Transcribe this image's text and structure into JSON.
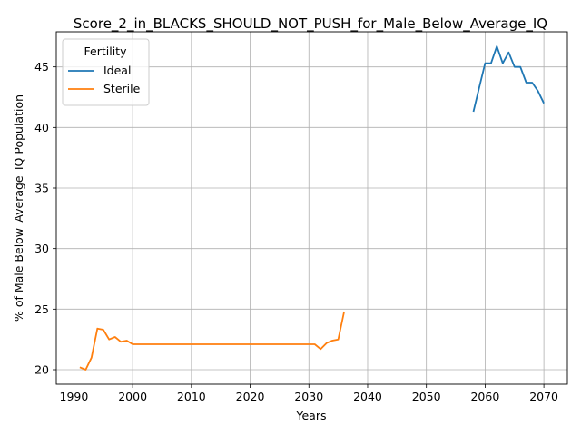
{
  "chart_data": {
    "type": "line",
    "title": "Score_2_in_BLACKS_SHOULD_NOT_PUSH_for_Male_Below_Average_IQ",
    "xlabel": "Years",
    "ylabel": "% of Male Below_Average_IQ Population",
    "xlim": [
      1987,
      2074
    ],
    "ylim": [
      18.8,
      47.9
    ],
    "xticks": [
      1990,
      2000,
      2010,
      2020,
      2030,
      2040,
      2050,
      2060,
      2070
    ],
    "yticks": [
      20,
      25,
      30,
      35,
      40,
      45
    ],
    "grid": true,
    "legend": {
      "title": "Fertility",
      "placement": "top-left"
    },
    "series": [
      {
        "name": "Ideal",
        "color": "#1f77b4",
        "x": [
          2058,
          2059,
          2060,
          2061,
          2062,
          2063,
          2064,
          2065,
          2066,
          2067,
          2068,
          2069,
          2070
        ],
        "y": [
          41.3,
          43.3,
          45.3,
          45.3,
          46.7,
          45.3,
          46.2,
          45.0,
          45.0,
          43.7,
          43.7,
          43.0,
          42.0
        ]
      },
      {
        "name": "Sterile",
        "color": "#ff7f0e",
        "x": [
          1991,
          1992,
          1993,
          1994,
          1995,
          1996,
          1997,
          1998,
          1999,
          2000,
          2001,
          2005,
          2010,
          2015,
          2020,
          2025,
          2030,
          2031,
          2032,
          2033,
          2034,
          2035,
          2036
        ],
        "y": [
          20.2,
          20.0,
          21.0,
          23.4,
          23.3,
          22.5,
          22.7,
          22.3,
          22.4,
          22.1,
          22.1,
          22.1,
          22.1,
          22.1,
          22.1,
          22.1,
          22.1,
          22.1,
          21.7,
          22.2,
          22.4,
          22.5,
          24.8
        ]
      }
    ]
  }
}
